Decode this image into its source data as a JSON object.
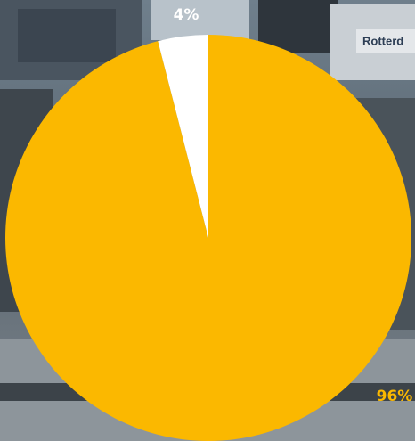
{
  "chart_data": {
    "type": "pie",
    "values": [
      96,
      4
    ],
    "value_labels": [
      "96%",
      "4%"
    ],
    "colors": [
      "#fbb800",
      "#ffffff"
    ],
    "label_colors": [
      "#fbb800",
      "#ffffff"
    ]
  },
  "background_sign": "Rotterd"
}
